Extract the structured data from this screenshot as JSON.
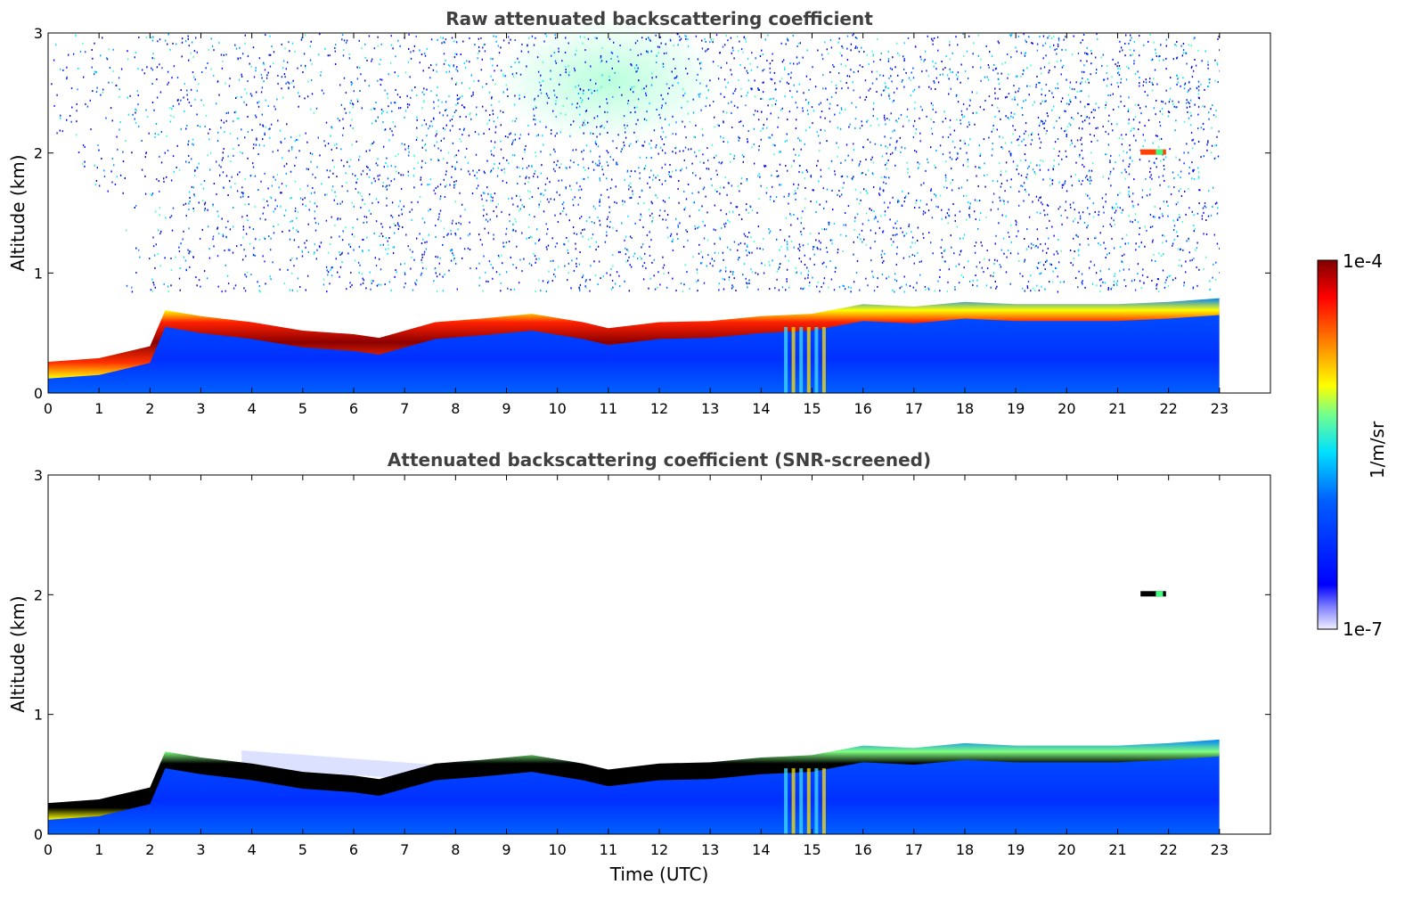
{
  "colors": {
    "jet": [
      "#00007f",
      "#0000ff",
      "#007fff",
      "#00ffff",
      "#7fff7f",
      "#ffff00",
      "#ff7f00",
      "#ff0000",
      "#7f0000"
    ],
    "saturated": "#000000",
    "frame": "#000000"
  },
  "colorbar": {
    "label": "1/m/sr",
    "max_label": "1e-4",
    "min_label": "1e-7",
    "scale": "log"
  },
  "chart_data": [
    {
      "type": "heatmap",
      "title": "Raw attenuated backscattering coefficient",
      "xlabel": "",
      "ylabel": "Altitude (km)",
      "xlim": [
        0,
        24
      ],
      "ylim": [
        0,
        3
      ],
      "xticks": [
        "0",
        "1",
        "2",
        "3",
        "4",
        "5",
        "6",
        "7",
        "8",
        "9",
        "10",
        "11",
        "12",
        "13",
        "14",
        "15",
        "16",
        "17",
        "18",
        "19",
        "20",
        "21",
        "22",
        "23"
      ],
      "yticks": [
        "0",
        "1",
        "2",
        "3"
      ],
      "data_end_hour": 23,
      "layer_top_km": [
        [
          0,
          0.22
        ],
        [
          1,
          0.25
        ],
        [
          2,
          0.35
        ],
        [
          2.3,
          0.65
        ],
        [
          3,
          0.6
        ],
        [
          4,
          0.55
        ],
        [
          5,
          0.48
        ],
        [
          6,
          0.45
        ],
        [
          6.5,
          0.42
        ],
        [
          7.6,
          0.55
        ],
        [
          8.5,
          0.58
        ],
        [
          9.5,
          0.62
        ],
        [
          10.5,
          0.55
        ],
        [
          11,
          0.5
        ],
        [
          12,
          0.55
        ],
        [
          13,
          0.56
        ],
        [
          14,
          0.6
        ],
        [
          15,
          0.62
        ],
        [
          16,
          0.7
        ],
        [
          17,
          0.68
        ],
        [
          18,
          0.72
        ],
        [
          19,
          0.7
        ],
        [
          20,
          0.7
        ],
        [
          21,
          0.7
        ],
        [
          22,
          0.72
        ],
        [
          23,
          0.75
        ]
      ],
      "isolated_cloud": {
        "hour": 21.7,
        "km": 2.0
      }
    },
    {
      "type": "heatmap",
      "title": "Attenuated backscattering coefficient (SNR-screened)",
      "xlabel": "Time (UTC)",
      "ylabel": "Altitude (km)",
      "xlim": [
        0,
        24
      ],
      "ylim": [
        0,
        3
      ],
      "xticks": [
        "0",
        "1",
        "2",
        "3",
        "4",
        "5",
        "6",
        "7",
        "8",
        "9",
        "10",
        "11",
        "12",
        "13",
        "14",
        "15",
        "16",
        "17",
        "18",
        "19",
        "20",
        "21",
        "22",
        "23"
      ],
      "yticks": [
        "0",
        "1",
        "2",
        "3"
      ],
      "data_end_hour": 23,
      "layer_top_km": [
        [
          0,
          0.22
        ],
        [
          1,
          0.25
        ],
        [
          2,
          0.35
        ],
        [
          2.3,
          0.65
        ],
        [
          3,
          0.6
        ],
        [
          4,
          0.55
        ],
        [
          5,
          0.48
        ],
        [
          6,
          0.45
        ],
        [
          6.5,
          0.42
        ],
        [
          7.6,
          0.55
        ],
        [
          8.5,
          0.58
        ],
        [
          9.5,
          0.62
        ],
        [
          10.5,
          0.55
        ],
        [
          11,
          0.5
        ],
        [
          12,
          0.55
        ],
        [
          13,
          0.56
        ],
        [
          14,
          0.6
        ],
        [
          15,
          0.62
        ],
        [
          16,
          0.7
        ],
        [
          17,
          0.68
        ],
        [
          18,
          0.72
        ],
        [
          19,
          0.7
        ],
        [
          20,
          0.7
        ],
        [
          21,
          0.7
        ],
        [
          22,
          0.72
        ],
        [
          23,
          0.75
        ]
      ],
      "isolated_cloud": {
        "hour": 21.7,
        "km": 2.0
      }
    }
  ]
}
